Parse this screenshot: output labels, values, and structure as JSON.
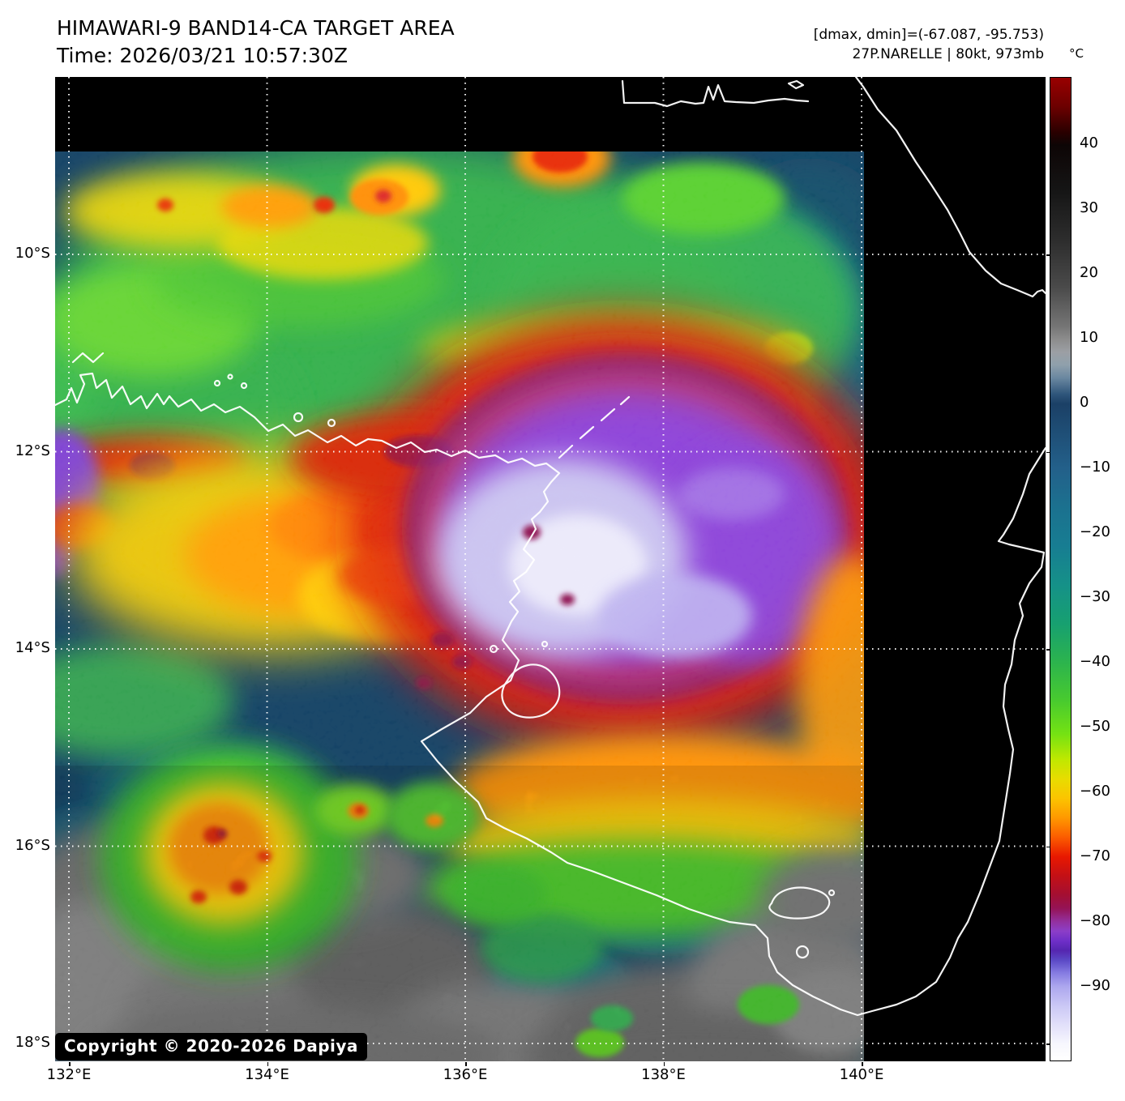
{
  "header": {
    "title": "HIMAWARI-9 BAND14-CA TARGET AREA",
    "time": "Time: 2026/03/21 10:57:30Z",
    "annotation1": "[dmax, dmin]=(-67.087, -95.753)",
    "annotation2": "27P.NARELLE | 80kt, 973mb"
  },
  "map": {
    "lat_labels": [
      "10°S",
      "12°S",
      "14°S",
      "16°S",
      "18°S"
    ],
    "lon_labels": [
      "132°E",
      "134°E",
      "136°E",
      "138°E",
      "140°E"
    ],
    "copyright": "Copyright © 2020-2026 Dapiya"
  },
  "colorbar": {
    "unit": "°C",
    "tick_labels": [
      "40",
      "30",
      "20",
      "10",
      "0",
      "−10",
      "−20",
      "−30",
      "−40",
      "−50",
      "−60",
      "−70",
      "−80",
      "−90"
    ],
    "gradient": [
      {
        "v": 50.4,
        "c": "#990000"
      },
      {
        "v": 46,
        "c": "#6d0000"
      },
      {
        "v": 42,
        "c": "#2a0000"
      },
      {
        "v": 40,
        "c": "#0d0505"
      },
      {
        "v": 33,
        "c": "#151515"
      },
      {
        "v": 25,
        "c": "#2e2e2e"
      },
      {
        "v": 18,
        "c": "#4a4a4a"
      },
      {
        "v": 12,
        "c": "#757575"
      },
      {
        "v": 10,
        "c": "#8c8c8c"
      },
      {
        "v": 8,
        "c": "#9c9fa4"
      },
      {
        "v": 6,
        "c": "#8fa0ac"
      },
      {
        "v": 4,
        "c": "#6a87a0"
      },
      {
        "v": 1.5,
        "c": "#2f567b"
      },
      {
        "v": 0,
        "c": "#1b4066"
      },
      {
        "v": -10,
        "c": "#23608a"
      },
      {
        "v": -16,
        "c": "#1b718f"
      },
      {
        "v": -22,
        "c": "#177d92"
      },
      {
        "v": -28,
        "c": "#159188"
      },
      {
        "v": -34,
        "c": "#17a070"
      },
      {
        "v": -40,
        "c": "#2cb44d"
      },
      {
        "v": -46,
        "c": "#49cb2e"
      },
      {
        "v": -51,
        "c": "#74e213"
      },
      {
        "v": -55,
        "c": "#c0e800"
      },
      {
        "v": -58,
        "c": "#e8dc00"
      },
      {
        "v": -61,
        "c": "#fcc400"
      },
      {
        "v": -64,
        "c": "#ff9800"
      },
      {
        "v": -67,
        "c": "#fb5c00"
      },
      {
        "v": -70,
        "c": "#e81800"
      },
      {
        "v": -73,
        "c": "#c31016"
      },
      {
        "v": -76,
        "c": "#a30f33"
      },
      {
        "v": -78,
        "c": "#951356"
      },
      {
        "v": -80,
        "c": "#93309e"
      },
      {
        "v": -81.5,
        "c": "#8c3ec8"
      },
      {
        "v": -83,
        "c": "#6f2fc8"
      },
      {
        "v": -84.5,
        "c": "#5526b0"
      },
      {
        "v": -86,
        "c": "#5b49c6"
      },
      {
        "v": -88,
        "c": "#867ce2"
      },
      {
        "v": -90,
        "c": "#aca6ee"
      },
      {
        "v": -93,
        "c": "#cac7f5"
      },
      {
        "v": -96,
        "c": "#e2e0fa"
      },
      {
        "v": -99,
        "c": "#f7f7fe"
      },
      {
        "v": -101.5,
        "c": "#ffffff"
      }
    ]
  }
}
